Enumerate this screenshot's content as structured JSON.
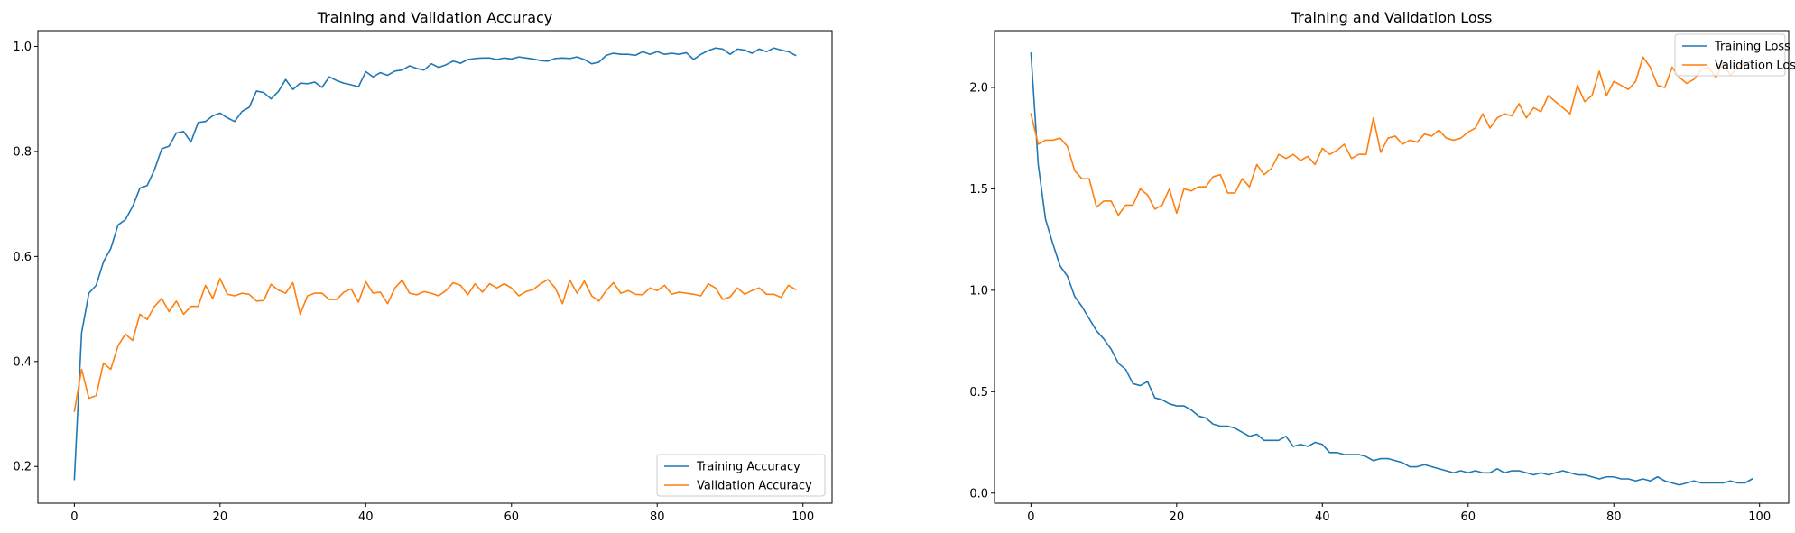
{
  "chart_data": [
    {
      "type": "line",
      "title": "Training and Validation Accuracy",
      "xlabel": "",
      "ylabel": "",
      "xlim": [
        -5,
        104
      ],
      "ylim": [
        0.13,
        1.03
      ],
      "xticks": [
        0,
        20,
        40,
        60,
        80,
        100
      ],
      "yticks": [
        0.2,
        0.4,
        0.6,
        0.8,
        1.0
      ],
      "xtick_labels": [
        "0",
        "20",
        "40",
        "60",
        "80",
        "100"
      ],
      "ytick_labels": [
        "0.2",
        "0.4",
        "0.6",
        "0.8",
        "1.0"
      ],
      "grid": false,
      "legend_position": "lower-right",
      "series": [
        {
          "name": "Training Accuracy",
          "color": "#1f77b4",
          "values": [
            0.175,
            0.455,
            0.53,
            0.545,
            0.59,
            0.615,
            0.66,
            0.67,
            0.695,
            0.73,
            0.735,
            0.765,
            0.805,
            0.81,
            0.835,
            0.838,
            0.818,
            0.855,
            0.857,
            0.868,
            0.873,
            0.864,
            0.857,
            0.876,
            0.884,
            0.915,
            0.912,
            0.9,
            0.914,
            0.937,
            0.918,
            0.93,
            0.929,
            0.932,
            0.922,
            0.942,
            0.935,
            0.93,
            0.927,
            0.923,
            0.952,
            0.942,
            0.95,
            0.945,
            0.953,
            0.955,
            0.963,
            0.958,
            0.955,
            0.967,
            0.96,
            0.965,
            0.972,
            0.968,
            0.975,
            0.977,
            0.978,
            0.978,
            0.975,
            0.978,
            0.976,
            0.98,
            0.978,
            0.976,
            0.973,
            0.972,
            0.977,
            0.978,
            0.977,
            0.98,
            0.975,
            0.967,
            0.97,
            0.983,
            0.987,
            0.985,
            0.985,
            0.983,
            0.99,
            0.985,
            0.99,
            0.985,
            0.987,
            0.985,
            0.988,
            0.975,
            0.985,
            0.992,
            0.997,
            0.995,
            0.985,
            0.995,
            0.993,
            0.987,
            0.995,
            0.99,
            0.997,
            0.993,
            0.99,
            0.983
          ]
        },
        {
          "name": "Validation Accuracy",
          "color": "#ff7f0e",
          "values": [
            0.305,
            0.385,
            0.33,
            0.335,
            0.397,
            0.385,
            0.43,
            0.452,
            0.44,
            0.49,
            0.48,
            0.505,
            0.52,
            0.495,
            0.515,
            0.49,
            0.505,
            0.505,
            0.545,
            0.52,
            0.558,
            0.528,
            0.525,
            0.53,
            0.528,
            0.515,
            0.516,
            0.547,
            0.536,
            0.53,
            0.55,
            0.49,
            0.525,
            0.53,
            0.53,
            0.518,
            0.518,
            0.532,
            0.538,
            0.513,
            0.552,
            0.53,
            0.532,
            0.51,
            0.54,
            0.555,
            0.53,
            0.527,
            0.533,
            0.53,
            0.525,
            0.535,
            0.55,
            0.545,
            0.527,
            0.548,
            0.532,
            0.548,
            0.54,
            0.548,
            0.54,
            0.525,
            0.533,
            0.537,
            0.548,
            0.556,
            0.54,
            0.51,
            0.555,
            0.53,
            0.553,
            0.525,
            0.515,
            0.535,
            0.55,
            0.53,
            0.535,
            0.528,
            0.527,
            0.54,
            0.535,
            0.545,
            0.528,
            0.532,
            0.53,
            0.528,
            0.525,
            0.548,
            0.54,
            0.518,
            0.523,
            0.54,
            0.528,
            0.535,
            0.54,
            0.528,
            0.528,
            0.522,
            0.545,
            0.537
          ]
        }
      ]
    },
    {
      "type": "line",
      "title": "Training and Validation Loss",
      "xlabel": "",
      "ylabel": "",
      "xlim": [
        -5,
        104
      ],
      "ylim": [
        -0.05,
        2.28
      ],
      "xticks": [
        0,
        20,
        40,
        60,
        80,
        100
      ],
      "yticks": [
        0.0,
        0.5,
        1.0,
        1.5,
        2.0
      ],
      "xtick_labels": [
        "0",
        "20",
        "40",
        "60",
        "80",
        "100"
      ],
      "ytick_labels": [
        "0.0",
        "0.5",
        "1.0",
        "1.5",
        "2.0"
      ],
      "grid": false,
      "legend_position": "upper-right",
      "series": [
        {
          "name": "Training Loss",
          "color": "#1f77b4",
          "values": [
            2.17,
            1.62,
            1.35,
            1.23,
            1.12,
            1.07,
            0.97,
            0.92,
            0.86,
            0.8,
            0.76,
            0.71,
            0.64,
            0.61,
            0.54,
            0.53,
            0.55,
            0.47,
            0.46,
            0.44,
            0.43,
            0.43,
            0.41,
            0.38,
            0.37,
            0.34,
            0.33,
            0.33,
            0.32,
            0.3,
            0.28,
            0.29,
            0.26,
            0.26,
            0.26,
            0.28,
            0.23,
            0.24,
            0.23,
            0.25,
            0.24,
            0.2,
            0.2,
            0.19,
            0.19,
            0.19,
            0.18,
            0.16,
            0.17,
            0.17,
            0.16,
            0.15,
            0.13,
            0.13,
            0.14,
            0.13,
            0.12,
            0.11,
            0.1,
            0.11,
            0.1,
            0.11,
            0.1,
            0.1,
            0.12,
            0.1,
            0.11,
            0.11,
            0.1,
            0.09,
            0.1,
            0.09,
            0.1,
            0.11,
            0.1,
            0.09,
            0.09,
            0.08,
            0.07,
            0.08,
            0.08,
            0.07,
            0.07,
            0.06,
            0.07,
            0.06,
            0.08,
            0.06,
            0.05,
            0.04,
            0.05,
            0.06,
            0.05,
            0.05,
            0.05,
            0.05,
            0.06,
            0.05,
            0.05,
            0.07
          ]
        },
        {
          "name": "Validation Loss",
          "color": "#ff7f0e",
          "values": [
            1.87,
            1.72,
            1.74,
            1.74,
            1.75,
            1.71,
            1.59,
            1.55,
            1.55,
            1.41,
            1.44,
            1.44,
            1.37,
            1.42,
            1.42,
            1.5,
            1.47,
            1.4,
            1.42,
            1.5,
            1.38,
            1.5,
            1.49,
            1.51,
            1.51,
            1.56,
            1.57,
            1.48,
            1.48,
            1.55,
            1.51,
            1.62,
            1.57,
            1.6,
            1.67,
            1.65,
            1.67,
            1.64,
            1.66,
            1.62,
            1.7,
            1.67,
            1.69,
            1.72,
            1.65,
            1.67,
            1.67,
            1.85,
            1.68,
            1.75,
            1.76,
            1.72,
            1.74,
            1.73,
            1.77,
            1.76,
            1.79,
            1.75,
            1.74,
            1.75,
            1.78,
            1.8,
            1.87,
            1.8,
            1.85,
            1.87,
            1.86,
            1.92,
            1.85,
            1.9,
            1.88,
            1.96,
            1.93,
            1.9,
            1.87,
            2.01,
            1.93,
            1.96,
            2.08,
            1.96,
            2.03,
            2.01,
            1.99,
            2.03,
            2.15,
            2.1,
            2.01,
            2.0,
            2.1,
            2.05,
            2.02,
            2.04,
            2.09,
            2.1,
            2.05,
            2.12,
            2.06,
            2.1,
            2.12,
            2.13
          ]
        }
      ]
    }
  ]
}
